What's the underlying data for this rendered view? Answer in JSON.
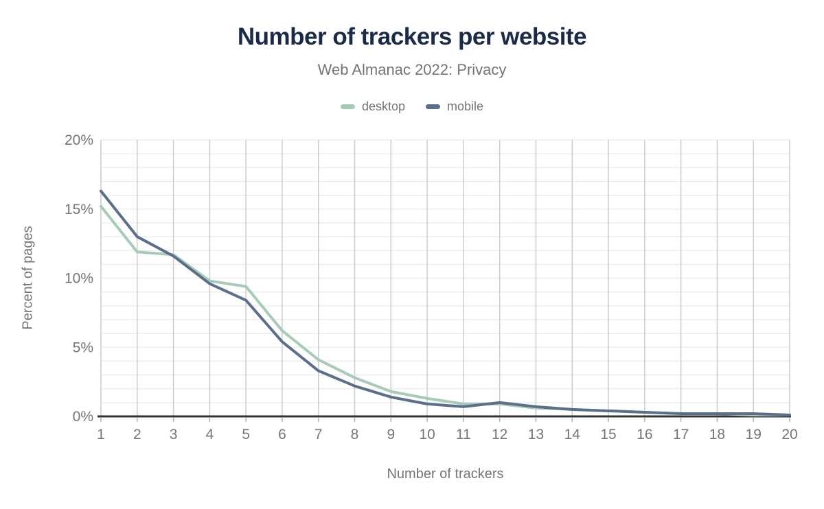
{
  "title": "Number of trackers per website",
  "subtitle": "Web Almanac 2022: Privacy",
  "legend": {
    "items": [
      {
        "label": "desktop",
        "color": "#a6ccb7"
      },
      {
        "label": "mobile",
        "color": "#5b6e8c"
      }
    ]
  },
  "chart_data": {
    "type": "line",
    "title": "Number of trackers per website",
    "subtitle": "Web Almanac 2022: Privacy",
    "xlabel": "Number of trackers",
    "ylabel": "Percent of pages",
    "x": [
      1,
      2,
      3,
      4,
      5,
      6,
      7,
      8,
      9,
      10,
      11,
      12,
      13,
      14,
      15,
      16,
      17,
      18,
      19,
      20
    ],
    "series": [
      {
        "name": "desktop",
        "color": "#a6ccb7",
        "values": [
          15.2,
          11.9,
          11.7,
          9.8,
          9.4,
          6.2,
          4.1,
          2.8,
          1.8,
          1.3,
          0.9,
          0.9,
          0.6,
          0.5,
          0.4,
          0.3,
          0.2,
          0.2,
          0.1,
          0.1
        ]
      },
      {
        "name": "mobile",
        "color": "#5b6e8c",
        "values": [
          16.3,
          13.0,
          11.6,
          9.6,
          8.4,
          5.4,
          3.3,
          2.2,
          1.4,
          0.9,
          0.7,
          1.0,
          0.7,
          0.5,
          0.4,
          0.3,
          0.2,
          0.2,
          0.2,
          0.1
        ]
      }
    ],
    "ylim": [
      0,
      20
    ],
    "yticks": [
      {
        "value": 0,
        "label": "0%"
      },
      {
        "value": 5,
        "label": "5%"
      },
      {
        "value": 10,
        "label": "10%"
      },
      {
        "value": 15,
        "label": "15%"
      },
      {
        "value": 20,
        "label": "20%"
      }
    ],
    "grid": true,
    "minor_y_gridline_step": 1,
    "legend_position": "top",
    "colors": {
      "title": "#1a2b49",
      "muted_text": "#757575",
      "vertical_gridline": "#cccccc",
      "horizontal_gridline": "#ededed",
      "axis_line": "#333333",
      "axis_tick": "#b3b3b3"
    }
  }
}
